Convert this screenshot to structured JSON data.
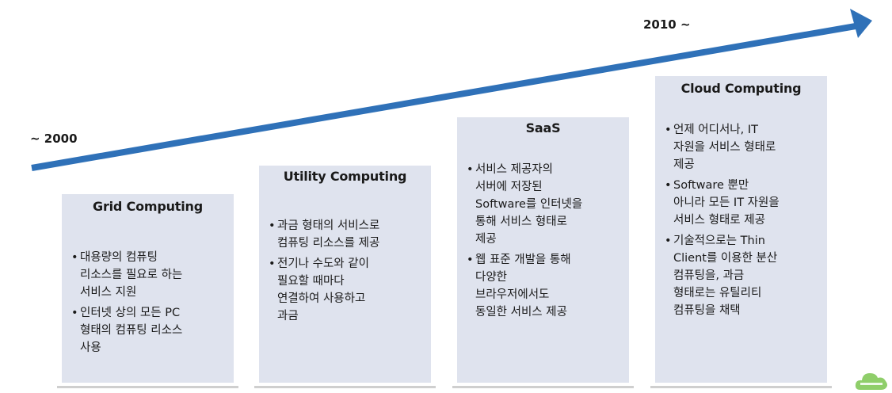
{
  "timeline": {
    "start_label": "~ 2000",
    "end_label": "2010 ~",
    "arrow_color": "#2f71b8"
  },
  "box_color": "#dfe3ee",
  "stages": [
    {
      "title": "Grid Computing",
      "items": [
        "대용량의 컴퓨팅\n리소스를 필요로 하는\n서비스 지원",
        "인터넷 상의 모든 PC\n형태의 컴퓨팅 리소스\n사용"
      ]
    },
    {
      "title": "Utility Computing",
      "items": [
        "과금 형태의 서비스로\n컴퓨팅 리소스를 제공",
        "전기나 수도와 같이\n필요할 때마다\n연결하여 사용하고\n과금"
      ]
    },
    {
      "title": "SaaS",
      "items": [
        "서비스 제공자의\n서버에 저장된\nSoftware를 인터넷을\n통해 서비스 형태로\n제공",
        "웹 표준 개발을 통해\n다양한\n브라우저에서도\n동일한 서비스 제공"
      ]
    },
    {
      "title": "Cloud Computing",
      "items": [
        "언제 어디서나, IT\n자원을 서비스 형태로\n제공",
        "Software 뿐만\n아니라 모든 IT 자원을\n서비스 형태로 제공",
        "기술적으로는 Thin\nClient를 이용한 분산\n컴퓨팅을, 과금\n형태로는 유틸리티\n컴퓨팅을 채택"
      ]
    }
  ],
  "logo": {
    "icon": "cloud-logo-icon",
    "color": "#8fce6a"
  }
}
